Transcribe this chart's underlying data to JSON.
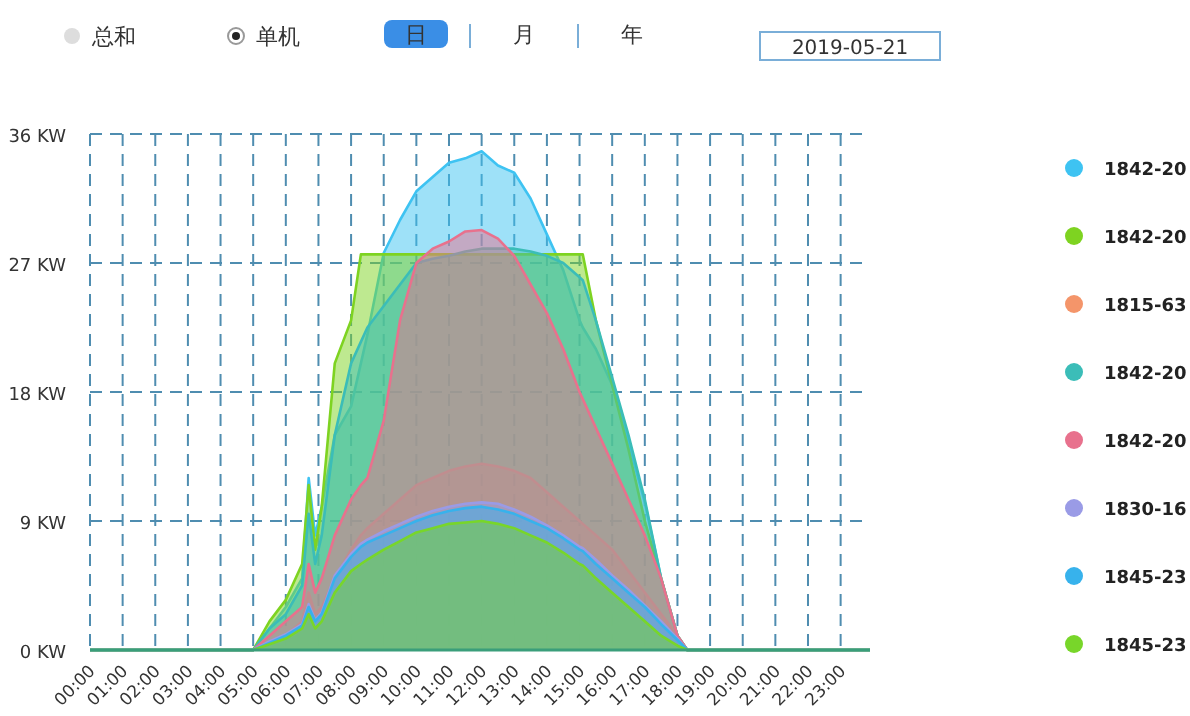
{
  "chart_data": {
    "type": "area",
    "annotations": [
      "总和",
      "单机",
      "日",
      "月",
      "年",
      "2019-05-21"
    ],
    "x": [
      0,
      5,
      5.5,
      6,
      6.5,
      6.7,
      6.9,
      7.1,
      7.5,
      8,
      8.3,
      8.5,
      9,
      9.5,
      10,
      10.5,
      11,
      11.5,
      12,
      12.5,
      13,
      13.5,
      14,
      14.5,
      15,
      15.1,
      15.5,
      16,
      16.5,
      17,
      17.5,
      18,
      18.3,
      23.9
    ],
    "xlim": [
      0,
      23.9
    ],
    "xticks": [
      {
        "value": 0,
        "label": "00:00"
      },
      {
        "value": 1,
        "label": "01:00"
      },
      {
        "value": 2,
        "label": "02:00"
      },
      {
        "value": 3,
        "label": "03:00"
      },
      {
        "value": 4,
        "label": "04:00"
      },
      {
        "value": 5,
        "label": "05:00"
      },
      {
        "value": 6,
        "label": "06:00"
      },
      {
        "value": 7,
        "label": "07:00"
      },
      {
        "value": 8,
        "label": "08:00"
      },
      {
        "value": 9,
        "label": "09:00"
      },
      {
        "value": 10,
        "label": "10:00"
      },
      {
        "value": 11,
        "label": "11:00"
      },
      {
        "value": 12,
        "label": "12:00"
      },
      {
        "value": 13,
        "label": "13:00"
      },
      {
        "value": 14,
        "label": "14:00"
      },
      {
        "value": 15,
        "label": "15:00"
      },
      {
        "value": 16,
        "label": "16:00"
      },
      {
        "value": 17,
        "label": "17:00"
      },
      {
        "value": 18,
        "label": "18:00"
      },
      {
        "value": 19,
        "label": "19:00"
      },
      {
        "value": 20,
        "label": "20:00"
      },
      {
        "value": 21,
        "label": "21:00"
      },
      {
        "value": 22,
        "label": "22:00"
      },
      {
        "value": 23,
        "label": "23:00"
      }
    ],
    "ylim": [
      0,
      36
    ],
    "yticks": [
      {
        "value": 0,
        "label": "0 KW"
      },
      {
        "value": 9,
        "label": "9 KW"
      },
      {
        "value": 18,
        "label": "18 KW"
      },
      {
        "value": 27,
        "label": "27 KW"
      },
      {
        "value": 36,
        "label": "36 KW"
      }
    ],
    "grid": true,
    "legend": "right",
    "line_style": "solid",
    "series": [
      {
        "name": "1842-20",
        "color": "#3ec3f2",
        "values": [
          0,
          0,
          1.5,
          3,
          5,
          12,
          8,
          10,
          15,
          17,
          20,
          22,
          27.7,
          30,
          32,
          33,
          34,
          34.3,
          34.8,
          33.8,
          33.3,
          31.5,
          29,
          26.5,
          23,
          22.5,
          21,
          18.5,
          14.5,
          10.3,
          5,
          1,
          0,
          0
        ]
      },
      {
        "name": "1842-20",
        "color": "#7ed321",
        "values": [
          0,
          0,
          2,
          3.5,
          6,
          11.5,
          7,
          10,
          20,
          23,
          27.6,
          27.6,
          27.6,
          27.6,
          27.6,
          27.6,
          27.6,
          27.6,
          27.6,
          27.6,
          27.6,
          27.6,
          27.6,
          27.6,
          27.6,
          27.6,
          23,
          18.5,
          14,
          9,
          5,
          1,
          0,
          0
        ]
      },
      {
        "name": "1815-63",
        "color": "#f4956a",
        "values": [
          0,
          0,
          0.5,
          1,
          2,
          4,
          2.5,
          3,
          5,
          7,
          8,
          8.5,
          9.5,
          10.5,
          11.5,
          12,
          12.5,
          12.8,
          13,
          12.8,
          12.5,
          12,
          11,
          10,
          9,
          8.8,
          8,
          7,
          5.5,
          4,
          2.5,
          1,
          0,
          0
        ]
      },
      {
        "name": "1842-20",
        "color": "#3bbdb8",
        "values": [
          0,
          0,
          1.5,
          2.5,
          4.5,
          9.5,
          6,
          8,
          15,
          20,
          21.5,
          22.5,
          24,
          25.5,
          27,
          27.3,
          27.5,
          27.8,
          28,
          28,
          28,
          27.8,
          27.5,
          27,
          26,
          25.8,
          23,
          19,
          15,
          10.5,
          5,
          1,
          0,
          0
        ]
      },
      {
        "name": "1842-20",
        "color": "#e8718d",
        "values": [
          0,
          0,
          1,
          2,
          3,
          6,
          4,
          5,
          8,
          10.5,
          11.5,
          12,
          16,
          23,
          27,
          28,
          28.5,
          29.2,
          29.3,
          28.7,
          27.5,
          25.5,
          23.5,
          21,
          18,
          17.5,
          15.5,
          13,
          10.5,
          8,
          5,
          1,
          0,
          0
        ]
      },
      {
        "name": "1830-16",
        "color": "#9a9be6",
        "values": [
          0,
          0,
          0.6,
          1.1,
          1.8,
          3.2,
          2.1,
          2.6,
          5.2,
          6.7,
          7.4,
          7.7,
          8.3,
          8.8,
          9.3,
          9.7,
          10,
          10.2,
          10.3,
          10.2,
          9.8,
          9.3,
          8.7,
          8,
          7.2,
          7.1,
          6.3,
          5.2,
          4.2,
          3.1,
          2,
          0.8,
          0,
          0
        ]
      },
      {
        "name": "1845-23",
        "color": "#37b2ec",
        "values": [
          0,
          0,
          0.5,
          1,
          1.7,
          3,
          2,
          2.5,
          5,
          6.5,
          7.2,
          7.5,
          8,
          8.5,
          9,
          9.4,
          9.7,
          9.9,
          10,
          9.8,
          9.5,
          9,
          8.5,
          7.8,
          7,
          6.9,
          6,
          5,
          4,
          3,
          1.8,
          0.7,
          0,
          0
        ]
      },
      {
        "name": "1845-23",
        "color": "#78d62a",
        "values": [
          0,
          0,
          0.4,
          0.8,
          1.5,
          2.5,
          1.5,
          2,
          4,
          5.5,
          6,
          6.3,
          7,
          7.6,
          8.2,
          8.5,
          8.8,
          8.9,
          9,
          8.8,
          8.5,
          8,
          7.5,
          6.8,
          6,
          5.9,
          5,
          4,
          3,
          2,
          1,
          0.3,
          0,
          0
        ]
      }
    ]
  }
}
